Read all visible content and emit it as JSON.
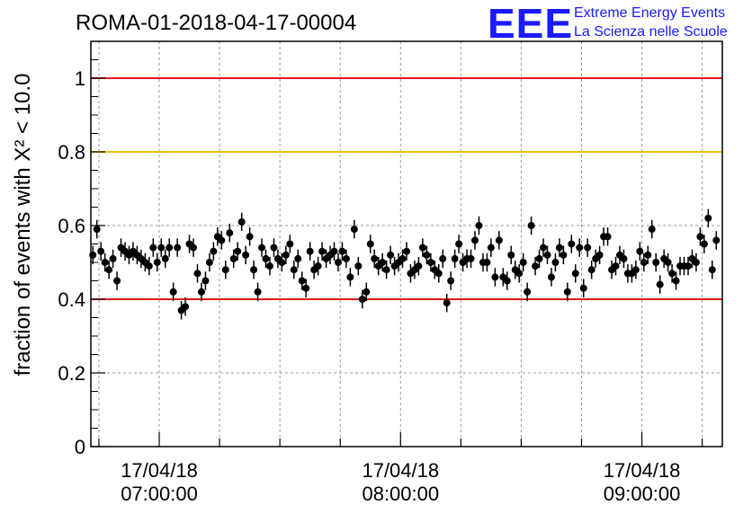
{
  "chart_data": {
    "type": "scatter",
    "title": "ROMA-01-2018-04-17-00004",
    "ylabel": "fraction of events with Χ² < 10.0",
    "ylim": [
      0,
      1.1
    ],
    "y_ticks": [
      "0",
      "0.2",
      "0.4",
      "0.6",
      "0.8",
      "1"
    ],
    "x_range_minutes": [
      -17,
      140
    ],
    "x_ticks": [
      {
        "date": "17/04/18",
        "time": "07:00:00",
        "minute": 0
      },
      {
        "date": "17/04/18",
        "time": "08:00:00",
        "minute": 60
      },
      {
        "date": "17/04/18",
        "time": "09:00:00",
        "minute": 120
      }
    ],
    "reference_lines": [
      {
        "y": 1.0,
        "color": "#e8161a"
      },
      {
        "y": 0.8,
        "color": "#f2c200"
      },
      {
        "y": 0.4,
        "color": "#e8161a"
      }
    ],
    "grid": true,
    "error": 0.025,
    "points_start_minute": -16.5,
    "points_step_minutes": 1,
    "values": [
      0.52,
      0.59,
      0.53,
      0.5,
      0.48,
      0.51,
      0.45,
      0.54,
      0.53,
      0.52,
      0.53,
      0.52,
      0.51,
      0.5,
      0.49,
      0.54,
      0.5,
      0.54,
      0.51,
      0.54,
      0.42,
      0.54,
      0.37,
      0.38,
      0.55,
      0.54,
      0.47,
      0.42,
      0.45,
      0.5,
      0.53,
      0.57,
      0.56,
      0.48,
      0.58,
      0.51,
      0.53,
      0.61,
      0.52,
      0.57,
      0.48,
      0.42,
      0.54,
      0.51,
      0.49,
      0.54,
      0.51,
      0.5,
      0.52,
      0.55,
      0.48,
      0.51,
      0.45,
      0.43,
      0.53,
      0.48,
      0.49,
      0.53,
      0.51,
      0.52,
      0.53,
      0.5,
      0.53,
      0.51,
      0.46,
      0.59,
      0.49,
      0.4,
      0.42,
      0.55,
      0.51,
      0.49,
      0.5,
      0.48,
      0.52,
      0.49,
      0.5,
      0.51,
      0.53,
      0.47,
      0.48,
      0.49,
      0.54,
      0.52,
      0.5,
      0.48,
      0.47,
      0.51,
      0.39,
      0.45,
      0.51,
      0.55,
      0.5,
      0.51,
      0.51,
      0.56,
      0.6,
      0.5,
      0.5,
      0.54,
      0.46,
      0.56,
      0.46,
      0.45,
      0.52,
      0.48,
      0.47,
      0.5,
      0.42,
      0.6,
      0.49,
      0.51,
      0.54,
      0.52,
      0.46,
      0.5,
      0.54,
      0.52,
      0.42,
      0.55,
      0.47,
      0.54,
      0.43,
      0.54,
      0.48,
      0.51,
      0.52,
      0.57,
      0.57,
      0.48,
      0.49,
      0.52,
      0.51,
      0.47,
      0.47,
      0.48,
      0.53,
      0.5,
      0.52,
      0.59,
      0.5,
      0.44,
      0.51,
      0.5,
      0.47,
      0.45,
      0.49,
      0.49,
      0.49,
      0.51,
      0.5,
      0.57,
      0.55,
      0.62,
      0.48,
      0.56
    ]
  },
  "logo": {
    "mark": "EEE",
    "line1": "Extreme Energy Events",
    "line2": "La Scienza nelle Scuole"
  }
}
